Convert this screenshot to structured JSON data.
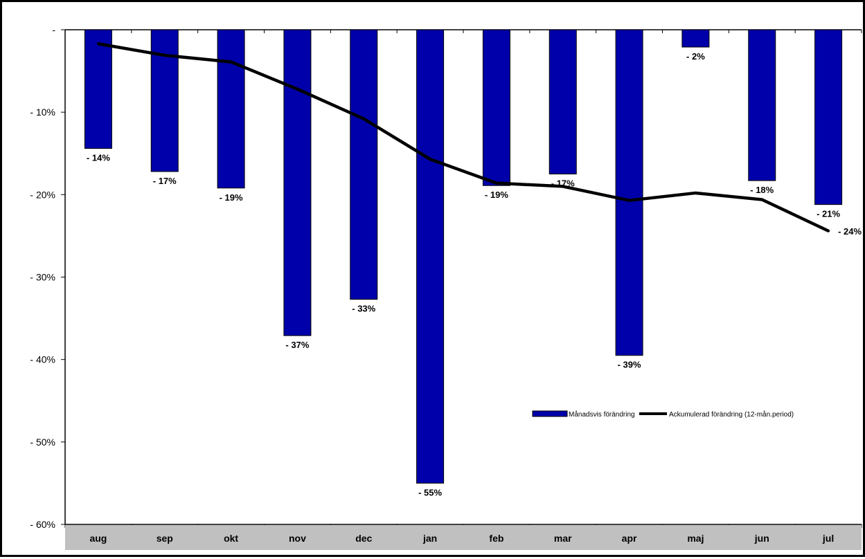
{
  "chart_data": {
    "type": "bar",
    "categories": [
      "aug",
      "sep",
      "okt",
      "nov",
      "dec",
      "jan",
      "feb",
      "mar",
      "apr",
      "maj",
      "jun",
      "jul"
    ],
    "series": [
      {
        "name": "Månadsvis förändring",
        "kind": "bar",
        "color": "#0000AA",
        "values": [
          -14.4,
          -17.2,
          -19.2,
          -37.1,
          -32.7,
          -55.0,
          -18.9,
          -17.5,
          -39.5,
          -2.1,
          -18.3,
          -21.2
        ],
        "labels": [
          "- 14%",
          "- 17%",
          "- 19%",
          "- 37%",
          "- 33%",
          "- 55%",
          "- 19%",
          "- 17%",
          "- 39%",
          "- 2%",
          "- 18%",
          "- 21%"
        ]
      },
      {
        "name": "Ackumulerad förändring (12-mån.period)",
        "kind": "line",
        "color": "#000000",
        "values": [
          -1.7,
          -3.1,
          -3.9,
          -7.2,
          -10.8,
          -15.7,
          -18.6,
          -19.0,
          -20.7,
          -19.8,
          -20.6,
          -24.4
        ],
        "end_label": "- 24%"
      }
    ],
    "ylim": [
      -60,
      0
    ],
    "yticks": [
      0,
      -10,
      -20,
      -30,
      -40,
      -50,
      -60
    ],
    "ytick_labels": [
      "-",
      "- 10%",
      "- 20%",
      "- 30%",
      "- 40%",
      "- 50%",
      "- 60%"
    ],
    "xlabel": "",
    "ylabel": "",
    "title": "",
    "grid": false,
    "legend_position": "inside-right"
  }
}
